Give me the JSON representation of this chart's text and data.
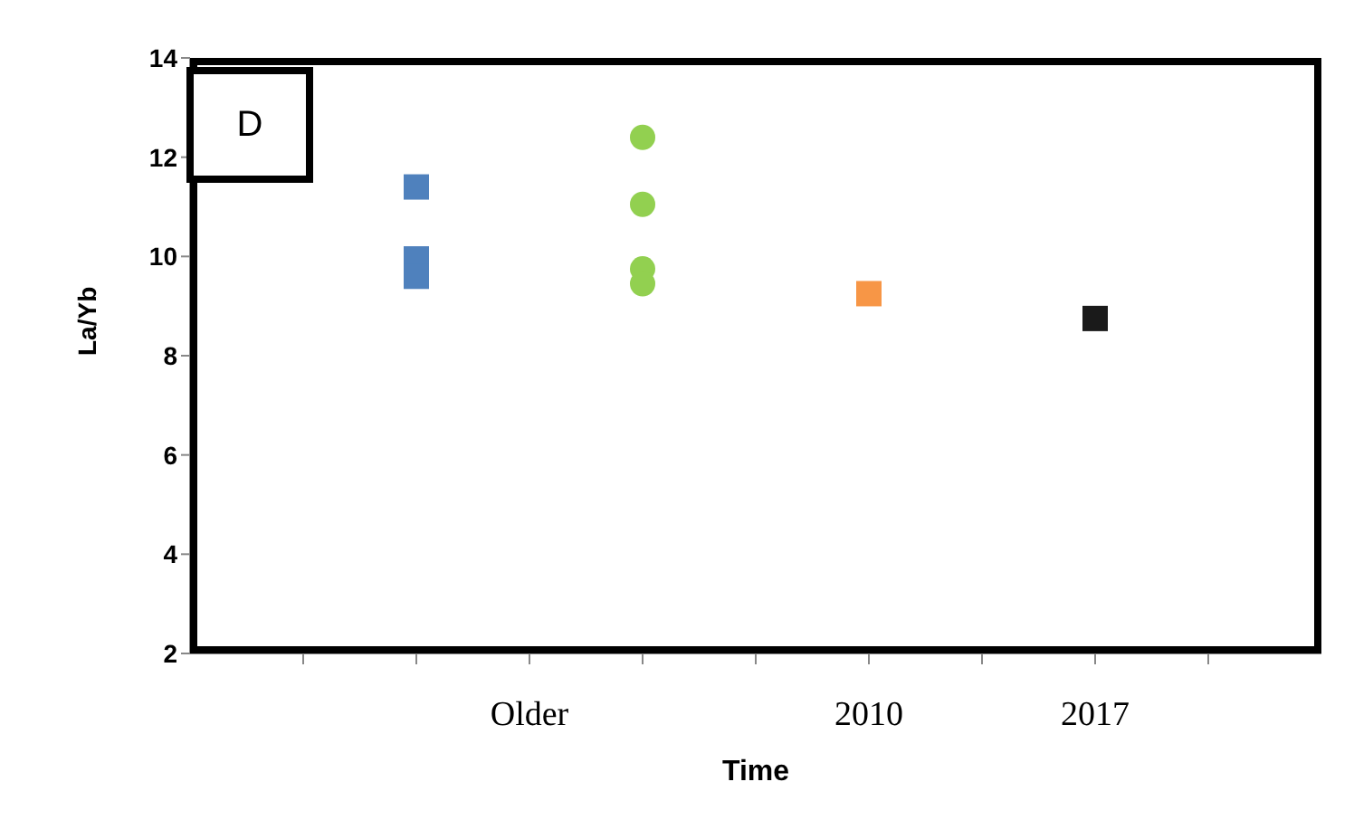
{
  "chart_data": {
    "type": "scatter",
    "xlabel": "Time",
    "ylabel": "La/Yb",
    "annotations": [
      "D"
    ],
    "categories": [
      null,
      null,
      "Older",
      null,
      null,
      "2010",
      null,
      "2017",
      null
    ],
    "ylim": [
      2,
      14
    ],
    "yticks": [
      2,
      4,
      6,
      8,
      10,
      12,
      14
    ],
    "grid": false,
    "legend": false,
    "series": [
      {
        "marker": "square",
        "colors": [
          null,
          "#4f81bd",
          null,
          null,
          null,
          "#f79646",
          null,
          "#1a1a1a",
          null
        ],
        "values": [
          null,
          11.4,
          null,
          null,
          null,
          9.25,
          null,
          8.75,
          null
        ]
      },
      {
        "marker": "square",
        "color": "#4f81bd",
        "values": [
          null,
          9.95,
          null,
          null,
          null,
          null,
          null,
          null,
          null
        ]
      },
      {
        "marker": "square",
        "color": "#4f81bd",
        "values": [
          null,
          9.6,
          null,
          null,
          null,
          null,
          null,
          null,
          null
        ]
      },
      {
        "marker": "circle",
        "color": "#92d050",
        "values": [
          null,
          null,
          null,
          12.4,
          null,
          null,
          null,
          null,
          null
        ]
      },
      {
        "marker": "circle",
        "color": "#92d050",
        "values": [
          null,
          null,
          null,
          11.05,
          null,
          null,
          null,
          null,
          null
        ]
      },
      {
        "marker": "circle",
        "color": "#92d050",
        "values": [
          null,
          null,
          null,
          9.75,
          null,
          null,
          null,
          null,
          null
        ]
      },
      {
        "marker": "circle",
        "color": "#92d050",
        "values": [
          null,
          null,
          null,
          9.45,
          null,
          null,
          null,
          null,
          null
        ]
      }
    ]
  }
}
